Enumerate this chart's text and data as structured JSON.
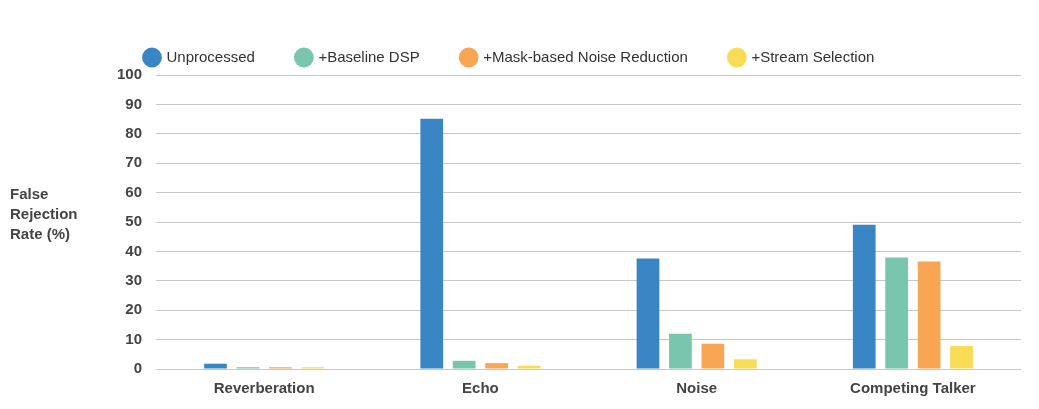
{
  "chart_data": {
    "type": "bar",
    "ylabel": "False Rejection Rate (%)",
    "categories": [
      "Reverberation",
      "Echo",
      "Noise",
      "Competing Talker"
    ],
    "series": [
      {
        "name": "Unprocessed",
        "color": "#3a86c4",
        "values": [
          1.8,
          85.1,
          37.6,
          49.1
        ]
      },
      {
        "name": "+Baseline DSP",
        "color": "#79c5ae",
        "values": [
          0.6,
          2.8,
          12.0,
          37.9
        ]
      },
      {
        "name": "+Mask-based Noise Reduction",
        "color": "#f9a654",
        "values": [
          0.6,
          2.0,
          8.6,
          36.6
        ]
      },
      {
        "name": "+Stream Selection",
        "color": "#f8dc56",
        "values": [
          0.6,
          1.1,
          3.3,
          7.8
        ]
      }
    ],
    "ylim": [
      0,
      100
    ],
    "yticks": [
      0,
      10,
      20,
      30,
      40,
      50,
      60,
      70,
      80,
      90,
      100
    ],
    "grid": "y",
    "legend": "top left"
  }
}
